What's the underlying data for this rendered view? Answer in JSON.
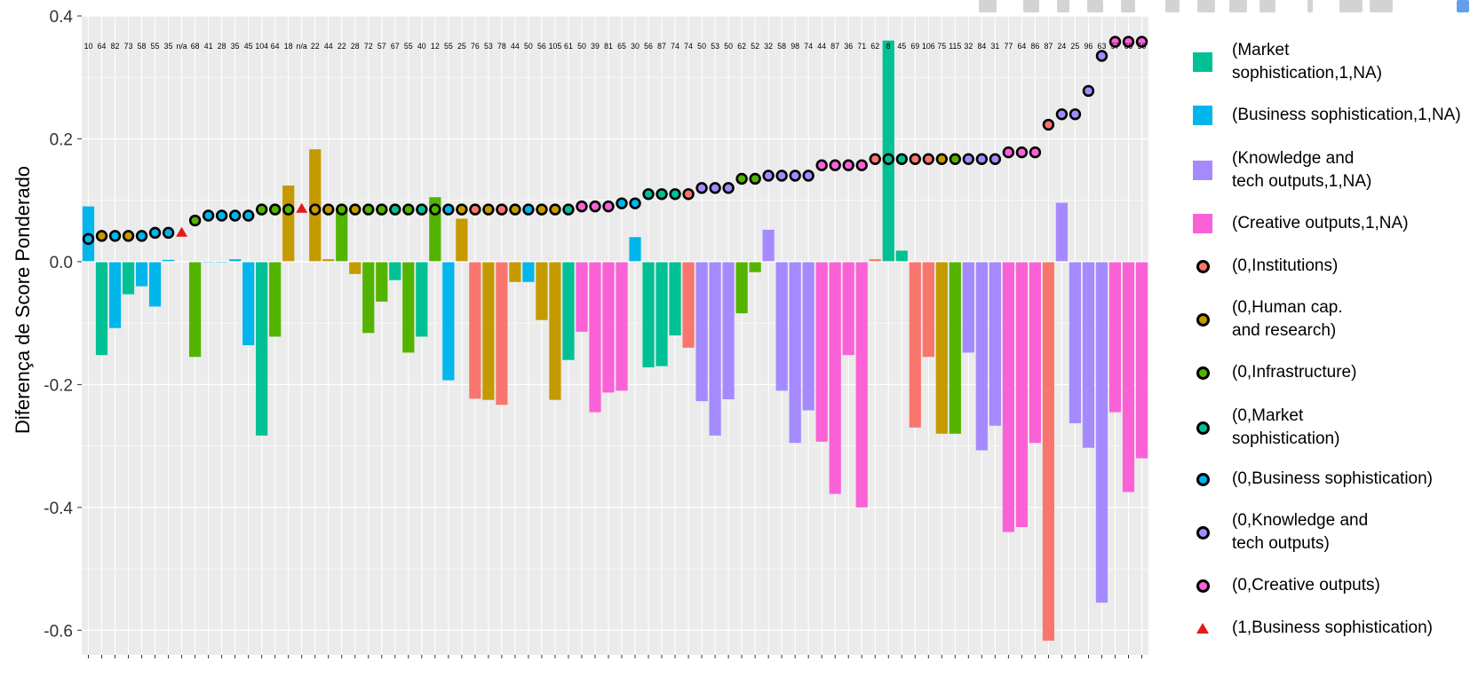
{
  "chart_data": {
    "type": "bar",
    "ylabel": "Diferença de Score Ponderado",
    "ylim": [
      -0.64,
      0.4
    ],
    "yticks": [
      0.4,
      0.2,
      0.0,
      -0.2,
      -0.4,
      -0.6
    ],
    "ytick_labels": [
      "0.4",
      "0.2",
      "0.0",
      "-0.2",
      "-0.4",
      "-0.6"
    ],
    "grid": true,
    "legend_position": "right",
    "categories": [
      "10",
      "64",
      "82",
      "73",
      "58",
      "55",
      "35",
      "n/a",
      "68",
      "41",
      "28",
      "35",
      "45",
      "104",
      "64",
      "18",
      "n/a",
      "22",
      "44",
      "22",
      "28",
      "72",
      "57",
      "67",
      "55",
      "40",
      "12",
      "55",
      "25",
      "76",
      "53",
      "78",
      "44",
      "50",
      "56",
      "105",
      "61",
      "50",
      "39",
      "81",
      "65",
      "30",
      "56",
      "87",
      "74",
      "74",
      "50",
      "53",
      "50",
      "62",
      "52",
      "32",
      "58",
      "98",
      "74",
      "44",
      "87",
      "36",
      "71",
      "62",
      "8",
      "45",
      "69",
      "106",
      "75",
      "115",
      "32",
      "84",
      "31",
      "77",
      "64",
      "86",
      "87",
      "24",
      "25",
      "96",
      "63",
      "57",
      "69",
      "50"
    ],
    "bar_values": [
      0.09,
      -0.152,
      -0.108,
      -0.053,
      -0.04,
      -0.073,
      0.003,
      0,
      -0.155,
      -0.001,
      -0.001,
      0.004,
      -0.136,
      -0.283,
      -0.122,
      0.124,
      0,
      0.183,
      0.004,
      0.083,
      -0.02,
      -0.116,
      -0.065,
      -0.03,
      -0.148,
      -0.122,
      0.105,
      -0.193,
      0.07,
      -0.223,
      -0.225,
      -0.233,
      -0.033,
      -0.033,
      -0.095,
      -0.225,
      -0.16,
      -0.114,
      -0.245,
      -0.213,
      -0.21,
      0.04,
      -0.172,
      -0.17,
      -0.12,
      -0.14,
      -0.227,
      -0.283,
      -0.224,
      -0.084,
      -0.017,
      0.052,
      -0.21,
      -0.295,
      -0.242,
      -0.293,
      -0.378,
      -0.152,
      -0.4,
      0.004,
      0.36,
      0.018,
      -0.27,
      -0.155,
      -0.28,
      -0.28,
      -0.148,
      -0.307,
      -0.267,
      -0.44,
      -0.432,
      -0.295,
      -0.617,
      0.096,
      -0.263,
      -0.303,
      -0.555,
      -0.245,
      -0.375,
      -0.32
    ],
    "bar_groups": [
      4,
      3,
      4,
      3,
      4,
      4,
      4,
      -1,
      2,
      4,
      4,
      4,
      4,
      3,
      2,
      1,
      -1,
      1,
      1,
      2,
      1,
      2,
      2,
      3,
      2,
      3,
      2,
      4,
      1,
      0,
      1,
      0,
      1,
      4,
      1,
      1,
      3,
      6,
      6,
      6,
      6,
      4,
      3,
      3,
      3,
      0,
      5,
      5,
      5,
      2,
      2,
      5,
      5,
      5,
      5,
      6,
      6,
      6,
      6,
      0,
      7,
      7,
      0,
      0,
      1,
      2,
      5,
      5,
      5,
      6,
      6,
      6,
      0,
      5,
      5,
      5,
      5,
      6,
      6,
      6
    ],
    "point_values": [
      0.037,
      0.042,
      0.042,
      0.042,
      0.042,
      0.047,
      0.047,
      0.048,
      0.067,
      0.075,
      0.075,
      0.075,
      0.075,
      0.085,
      0.085,
      0.085,
      0.087,
      0.085,
      0.085,
      0.085,
      0.085,
      0.085,
      0.085,
      0.085,
      0.085,
      0.085,
      0.085,
      0.085,
      0.085,
      0.085,
      0.085,
      0.085,
      0.085,
      0.085,
      0.085,
      0.085,
      0.085,
      0.09,
      0.09,
      0.09,
      0.095,
      0.095,
      0.11,
      0.11,
      0.11,
      0.11,
      0.12,
      0.12,
      0.12,
      0.135,
      0.135,
      0.14,
      0.14,
      0.14,
      0.14,
      0.157,
      0.157,
      0.157,
      0.157,
      0.167,
      0.167,
      0.167,
      0.167,
      0.167,
      0.167,
      0.167,
      0.167,
      0.167,
      0.167,
      0.178,
      0.178,
      0.178,
      0.223,
      0.24,
      0.24,
      0.278,
      0.335,
      0.358,
      0.358,
      0.358
    ],
    "point_groups": [
      4,
      1,
      4,
      1,
      4,
      4,
      4,
      8,
      2,
      4,
      4,
      4,
      4,
      2,
      2,
      2,
      8,
      1,
      1,
      2,
      1,
      2,
      2,
      3,
      2,
      3,
      2,
      4,
      1,
      0,
      1,
      0,
      1,
      4,
      1,
      1,
      3,
      6,
      6,
      6,
      4,
      4,
      3,
      3,
      3,
      0,
      5,
      5,
      5,
      2,
      2,
      5,
      5,
      5,
      5,
      6,
      6,
      6,
      6,
      0,
      3,
      3,
      0,
      0,
      1,
      2,
      5,
      5,
      5,
      6,
      6,
      6,
      0,
      5,
      5,
      5,
      5,
      6,
      6,
      6
    ],
    "group_colors": [
      "#f8766d",
      "#c49a00",
      "#53b400",
      "#00c094",
      "#00b6eb",
      "#a58aff",
      "#fb61d7",
      "#00c094",
      "#e31a1c"
    ],
    "series": [
      {
        "name": "(Market\nsophistication,1,NA)",
        "color": "#00c094",
        "marker": "square"
      },
      {
        "name": "(Business sophistication,1,NA)",
        "color": "#00b6eb",
        "marker": "square"
      },
      {
        "name": "(Knowledge and\ntech outputs,1,NA)",
        "color": "#a58aff",
        "marker": "square"
      },
      {
        "name": "(Creative outputs,1,NA)",
        "color": "#fb61d7",
        "marker": "square"
      },
      {
        "name": "(0,Institutions)",
        "color": "#f8766d",
        "marker": "dot"
      },
      {
        "name": "(0,Human cap.\nand research)",
        "color": "#c49a00",
        "marker": "dot"
      },
      {
        "name": "(0,Infrastructure)",
        "color": "#53b400",
        "marker": "dot"
      },
      {
        "name": "(0,Market\nsophistication)",
        "color": "#00c094",
        "marker": "dot"
      },
      {
        "name": "(0,Business sophistication)",
        "color": "#00b6eb",
        "marker": "dot"
      },
      {
        "name": "(0,Knowledge and\ntech outputs)",
        "color": "#a58aff",
        "marker": "dot"
      },
      {
        "name": "(0,Creative outputs)",
        "color": "#fb61d7",
        "marker": "dot"
      },
      {
        "name": "(1,Business sophistication)",
        "color": "#e31a1c",
        "marker": "triangle"
      }
    ]
  }
}
